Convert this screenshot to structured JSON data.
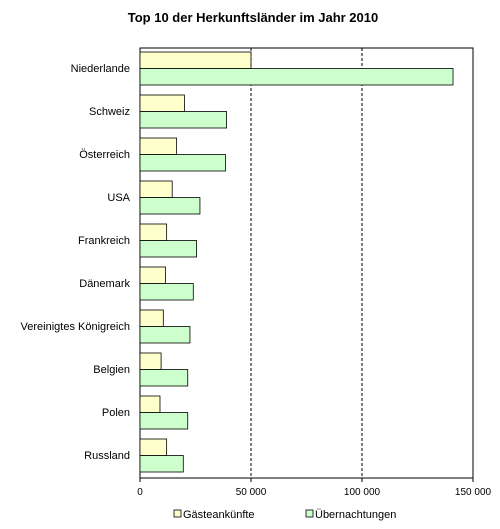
{
  "chart_data": {
    "type": "bar",
    "orientation": "horizontal",
    "title": "Top 10 der Herkunftsländer im Jahr 2010",
    "categories": [
      "Niederlande",
      "Schweiz",
      "Österreich",
      "USA",
      "Frankreich",
      "Dänemark",
      "Vereinigtes Königreich",
      "Belgien",
      "Polen",
      "Russland"
    ],
    "series": [
      {
        "name": "Gästeankünfte",
        "color": "#ffffcc",
        "values": [
          50000,
          20000,
          16500,
          14500,
          12000,
          11500,
          10500,
          9500,
          9000,
          12000
        ]
      },
      {
        "name": "Übernachtungen",
        "color": "#ccffcc",
        "values": [
          141000,
          39000,
          38500,
          27000,
          25500,
          24000,
          22500,
          21500,
          21500,
          19500
        ]
      }
    ],
    "xlim": [
      0,
      150000
    ],
    "xticks": [
      "0",
      "50 000",
      "100 000",
      "150 000"
    ],
    "xtick_values": [
      0,
      50000,
      100000,
      150000
    ],
    "gridlines": "dashed at 50 000 and 100 000",
    "legend_position": "bottom"
  }
}
